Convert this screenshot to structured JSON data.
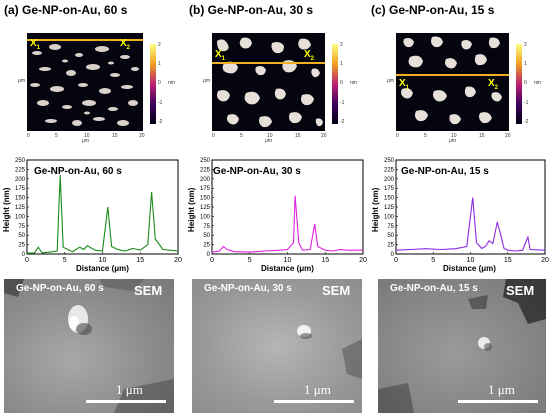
{
  "panels": [
    {
      "letter": "(a)",
      "title": "Ge-NP-on-Au, 60 s",
      "plot_label": "Ge-NP-on-Au, 60 s",
      "sem_label": "Ge-NP-on-Au, 60 s",
      "line_color": "#1a8a1a",
      "profile": [
        [
          0,
          2
        ],
        [
          1,
          3
        ],
        [
          1.5,
          18
        ],
        [
          2,
          3
        ],
        [
          3,
          5
        ],
        [
          4,
          8
        ],
        [
          4.4,
          210
        ],
        [
          4.8,
          18
        ],
        [
          6,
          6
        ],
        [
          7,
          18
        ],
        [
          7.5,
          12
        ],
        [
          8,
          22
        ],
        [
          9,
          10
        ],
        [
          10,
          8
        ],
        [
          10.7,
          125
        ],
        [
          11.2,
          20
        ],
        [
          12,
          12
        ],
        [
          13,
          8
        ],
        [
          14,
          15
        ],
        [
          15,
          10
        ],
        [
          16,
          25
        ],
        [
          16.5,
          165
        ],
        [
          17,
          40
        ],
        [
          18,
          12
        ],
        [
          19,
          10
        ],
        [
          20,
          8
        ]
      ]
    },
    {
      "letter": "(b)",
      "title": "Ge-NP-on-Au, 30 s",
      "plot_label": "Ge-NP-on-Au, 30 s",
      "sem_label": "Ge-NP-on-Au, 30 s",
      "line_color": "#e020e0",
      "profile": [
        [
          0,
          5
        ],
        [
          1,
          8
        ],
        [
          1.5,
          20
        ],
        [
          2,
          12
        ],
        [
          3,
          6
        ],
        [
          5,
          5
        ],
        [
          7,
          8
        ],
        [
          9,
          10
        ],
        [
          10,
          12
        ],
        [
          10.8,
          30
        ],
        [
          11,
          155
        ],
        [
          11.5,
          30
        ],
        [
          12,
          10
        ],
        [
          13,
          12
        ],
        [
          13.6,
          80
        ],
        [
          14,
          20
        ],
        [
          15,
          10
        ],
        [
          16,
          8
        ],
        [
          17,
          12
        ],
        [
          18,
          10
        ],
        [
          20,
          10
        ]
      ]
    },
    {
      "letter": "(c)",
      "title": "Ge-NP-on-Au, 15 s",
      "plot_label": "Ge-NP-on-Au, 15 s",
      "sem_label": "Ge-NP-on-Au, 15 s",
      "line_color": "#8a2be2",
      "profile": [
        [
          0,
          10
        ],
        [
          2,
          12
        ],
        [
          4,
          14
        ],
        [
          6,
          12
        ],
        [
          8,
          14
        ],
        [
          9.5,
          20
        ],
        [
          10.3,
          150
        ],
        [
          10.8,
          30
        ],
        [
          11.5,
          15
        ],
        [
          12,
          20
        ],
        [
          12.5,
          35
        ],
        [
          13,
          28
        ],
        [
          13.6,
          85
        ],
        [
          14,
          55
        ],
        [
          14.5,
          15
        ],
        [
          15,
          10
        ],
        [
          16,
          8
        ],
        [
          17,
          10
        ],
        [
          17.7,
          45
        ],
        [
          18,
          12
        ],
        [
          20,
          10
        ]
      ]
    }
  ],
  "afm": {
    "x1": "X",
    "x2": "X",
    "sub1": "1",
    "sub2": "2",
    "axis_unit": "μm",
    "axis_ticks": [
      "0",
      "5",
      "10",
      "15",
      "20"
    ],
    "cbar_ticks": [
      "2",
      "1",
      "0",
      "-1",
      "-2"
    ],
    "cbar_unit": "nm"
  },
  "plot_axes": {
    "ylabel": "Height (nm)",
    "xlabel": "Distance (μm)",
    "yticks": [
      "0",
      "25",
      "50",
      "75",
      "100",
      "125",
      "150",
      "175",
      "200",
      "225",
      "250"
    ],
    "xticks": [
      "0",
      "5",
      "10",
      "15",
      "20"
    ]
  },
  "sem": {
    "tag": "SEM",
    "scale": "1 μm"
  },
  "chart_data": [
    {
      "type": "line",
      "title": "Ge-NP-on-Au, 60 s",
      "xlabel": "Distance (μm)",
      "ylabel": "Height (nm)",
      "xlim": [
        0,
        20
      ],
      "ylim": [
        0,
        250
      ],
      "x": [
        0,
        1,
        1.5,
        2,
        3,
        4,
        4.4,
        4.8,
        6,
        7,
        7.5,
        8,
        9,
        10,
        10.7,
        11.2,
        12,
        13,
        14,
        15,
        16,
        16.5,
        17,
        18,
        19,
        20
      ],
      "values": [
        2,
        3,
        18,
        3,
        5,
        8,
        210,
        18,
        6,
        18,
        12,
        22,
        10,
        8,
        125,
        20,
        12,
        8,
        15,
        10,
        25,
        165,
        40,
        12,
        10,
        8
      ]
    },
    {
      "type": "line",
      "title": "Ge-NP-on-Au, 30 s",
      "xlabel": "Distance (μm)",
      "ylabel": "Height (nm)",
      "xlim": [
        0,
        20
      ],
      "ylim": [
        0,
        250
      ],
      "x": [
        0,
        1,
        1.5,
        2,
        3,
        5,
        7,
        9,
        10,
        10.8,
        11,
        11.5,
        12,
        13,
        13.6,
        14,
        15,
        16,
        17,
        18,
        20
      ],
      "values": [
        5,
        8,
        20,
        12,
        6,
        5,
        8,
        10,
        12,
        30,
        155,
        30,
        10,
        12,
        80,
        20,
        10,
        8,
        12,
        10,
        10
      ]
    },
    {
      "type": "line",
      "title": "Ge-NP-on-Au, 15 s",
      "xlabel": "Distance (μm)",
      "ylabel": "Height (nm)",
      "xlim": [
        0,
        20
      ],
      "ylim": [
        0,
        250
      ],
      "x": [
        0,
        2,
        4,
        6,
        8,
        9.5,
        10.3,
        10.8,
        11.5,
        12,
        12.5,
        13,
        13.6,
        14,
        14.5,
        15,
        16,
        17,
        17.7,
        18,
        20
      ],
      "values": [
        10,
        12,
        14,
        12,
        14,
        20,
        150,
        30,
        15,
        20,
        35,
        28,
        85,
        55,
        15,
        10,
        8,
        10,
        45,
        12,
        10
      ]
    }
  ]
}
